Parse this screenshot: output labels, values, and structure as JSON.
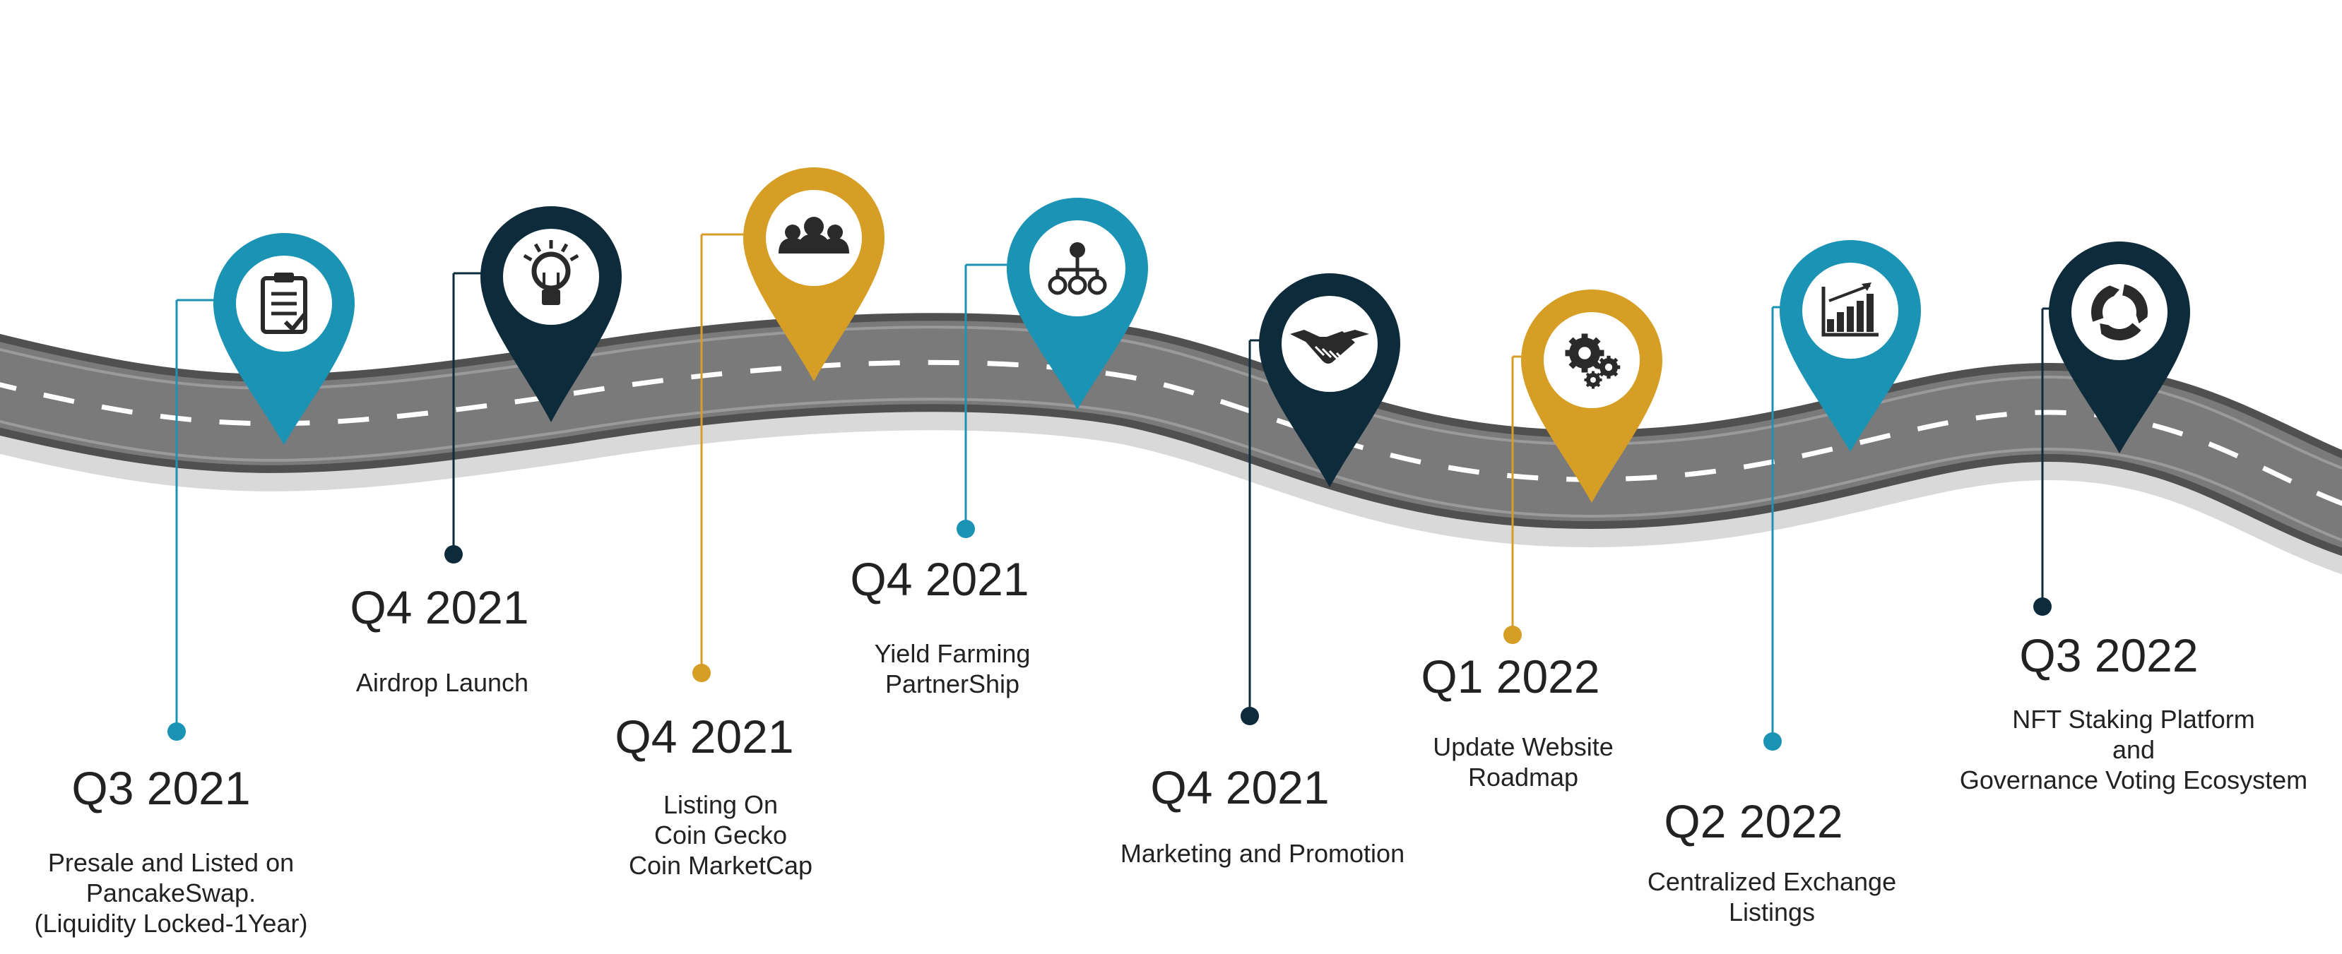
{
  "colors": {
    "teal": "#1b93b5",
    "navy": "#0e2b3b",
    "gold": "#d79e26",
    "road": "#747474",
    "road_dark": "#5a5a5a",
    "shadow": "#d9d9d9",
    "dash": "#ffffff"
  },
  "milestones": [
    {
      "quarter": "Q3 2021",
      "lines": [
        "Presale and Listed on",
        "PancakeSwap.",
        "(Liquidity Locked-1Year)"
      ],
      "color": "teal",
      "icon": "clipboard-check-icon"
    },
    {
      "quarter": "Q4 2021",
      "lines": [
        "Airdrop Launch"
      ],
      "color": "navy",
      "icon": "lightbulb-icon"
    },
    {
      "quarter": "Q4 2021",
      "lines": [
        "Listing On",
        "Coin Gecko",
        "Coin MarketCap"
      ],
      "color": "gold",
      "icon": "team-icon"
    },
    {
      "quarter": "Q4 2021",
      "lines": [
        "Yield Farming",
        "PartnerShip"
      ],
      "color": "teal",
      "icon": "hierarchy-icon"
    },
    {
      "quarter": "Q4 2021",
      "lines": [
        "Marketing and Promotion"
      ],
      "color": "navy",
      "icon": "handshake-icon"
    },
    {
      "quarter": "Q1 2022",
      "lines": [
        "Update Website",
        "Roadmap"
      ],
      "color": "gold",
      "icon": "gears-icon"
    },
    {
      "quarter": "Q2 2022",
      "lines": [
        "Centralized Exchange",
        "Listings"
      ],
      "color": "teal",
      "icon": "bar-chart-growth-icon"
    },
    {
      "quarter": "Q3 2022",
      "lines": [
        "NFT Staking Platform",
        "and",
        "Governance Voting Ecosystem"
      ],
      "color": "navy",
      "icon": "cycle-arrows-icon"
    }
  ]
}
